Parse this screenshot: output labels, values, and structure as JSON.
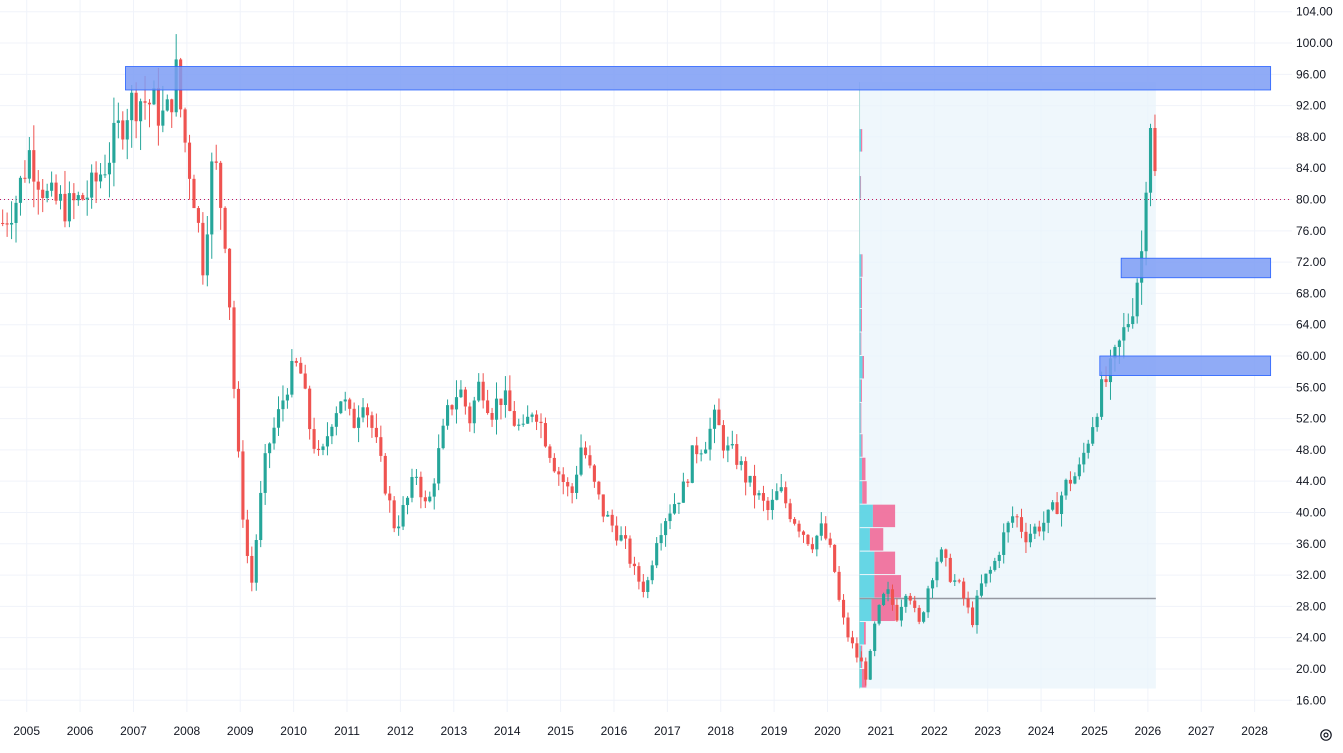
{
  "colors": {
    "up": "#26a69a",
    "down": "#ef5350",
    "zone_fill": "#7c9cf5",
    "zone_stroke": "#2962ff",
    "vp_up": "#4dd0e1",
    "vp_down": "#f06292",
    "vp_bg": "#e8f4fb",
    "price_line": "#c2185b",
    "poc": "#9598a1",
    "grid": "#f0f3fa",
    "text": "#131722"
  },
  "chart_data": {
    "type": "candlestick",
    "interval": "monthly",
    "title": "",
    "xlabel": "",
    "ylabel": "",
    "grid": true,
    "x_ticks": [
      "2005",
      "2006",
      "2007",
      "2008",
      "2009",
      "2010",
      "2011",
      "2012",
      "2013",
      "2014",
      "2015",
      "2016",
      "2017",
      "2018",
      "2019",
      "2020",
      "2021",
      "2022",
      "2023",
      "2024",
      "2025",
      "2026",
      "2027",
      "2028"
    ],
    "y_ticks": [
      "16.00",
      "20.00",
      "24.00",
      "28.00",
      "32.00",
      "36.00",
      "40.00",
      "44.00",
      "48.00",
      "52.00",
      "56.00",
      "60.00",
      "64.00",
      "68.00",
      "72.00",
      "76.00",
      "80.00",
      "84.00",
      "88.00",
      "92.00",
      "96.00",
      "100.00",
      "104.00"
    ],
    "ylim": [
      14.5,
      105.5
    ],
    "xlim": [
      2004.5,
      2028.7
    ],
    "last_price": 80.0,
    "anchors": [
      [
        2004.55,
        77
      ],
      [
        2004.8,
        80
      ],
      [
        2005.05,
        86
      ],
      [
        2005.4,
        80
      ],
      [
        2005.8,
        79
      ],
      [
        2006.2,
        81
      ],
      [
        2006.5,
        85
      ],
      [
        2006.9,
        92
      ],
      [
        2007.1,
        93
      ],
      [
        2007.4,
        92
      ],
      [
        2007.6,
        90
      ],
      [
        2007.8,
        96
      ],
      [
        2007.95,
        88
      ],
      [
        2008.15,
        80
      ],
      [
        2008.3,
        72
      ],
      [
        2008.5,
        86
      ],
      [
        2008.75,
        74
      ],
      [
        2008.85,
        60
      ],
      [
        2008.95,
        48
      ],
      [
        2009.05,
        40
      ],
      [
        2009.2,
        30
      ],
      [
        2009.35,
        40
      ],
      [
        2009.5,
        48
      ],
      [
        2009.7,
        52
      ],
      [
        2009.9,
        57
      ],
      [
        2010.1,
        59
      ],
      [
        2010.3,
        51
      ],
      [
        2010.5,
        46
      ],
      [
        2010.7,
        52
      ],
      [
        2010.9,
        55
      ],
      [
        2011.1,
        51
      ],
      [
        2011.3,
        55
      ],
      [
        2011.5,
        50
      ],
      [
        2011.7,
        44
      ],
      [
        2011.9,
        38
      ],
      [
        2012.1,
        41
      ],
      [
        2012.3,
        45
      ],
      [
        2012.5,
        40
      ],
      [
        2012.7,
        47
      ],
      [
        2012.9,
        53
      ],
      [
        2013.1,
        56
      ],
      [
        2013.3,
        52
      ],
      [
        2013.5,
        57
      ],
      [
        2013.7,
        53
      ],
      [
        2013.9,
        55
      ],
      [
        2014.1,
        52
      ],
      [
        2014.3,
        50
      ],
      [
        2014.5,
        54
      ],
      [
        2014.7,
        50
      ],
      [
        2014.9,
        46
      ],
      [
        2015.2,
        42
      ],
      [
        2015.4,
        49
      ],
      [
        2015.6,
        44
      ],
      [
        2015.8,
        40
      ],
      [
        2016.0,
        38
      ],
      [
        2016.2,
        36
      ],
      [
        2016.4,
        32
      ],
      [
        2016.6,
        30
      ],
      [
        2016.8,
        37
      ],
      [
        2017.0,
        40
      ],
      [
        2017.3,
        43
      ],
      [
        2017.5,
        48
      ],
      [
        2017.7,
        49
      ],
      [
        2017.9,
        52
      ],
      [
        2018.1,
        48
      ],
      [
        2018.3,
        47
      ],
      [
        2018.5,
        44
      ],
      [
        2018.7,
        42
      ],
      [
        2018.9,
        40
      ],
      [
        2019.1,
        43
      ],
      [
        2019.3,
        40
      ],
      [
        2019.5,
        38
      ],
      [
        2019.7,
        36
      ],
      [
        2019.9,
        38
      ],
      [
        2020.1,
        34
      ],
      [
        2020.25,
        27
      ],
      [
        2020.45,
        23
      ],
      [
        2020.6,
        21
      ],
      [
        2020.75,
        19
      ],
      [
        2020.9,
        26
      ],
      [
        2021.1,
        30
      ],
      [
        2021.3,
        27
      ],
      [
        2021.5,
        31
      ],
      [
        2021.7,
        25
      ],
      [
        2021.9,
        31
      ],
      [
        2022.1,
        35
      ],
      [
        2022.3,
        32
      ],
      [
        2022.5,
        30
      ],
      [
        2022.7,
        26
      ],
      [
        2022.9,
        31
      ],
      [
        2023.1,
        33
      ],
      [
        2023.3,
        37
      ],
      [
        2023.5,
        40
      ],
      [
        2023.7,
        37
      ],
      [
        2023.9,
        38
      ],
      [
        2024.1,
        39
      ],
      [
        2024.3,
        41
      ],
      [
        2024.5,
        44
      ],
      [
        2024.7,
        45
      ],
      [
        2024.9,
        50
      ],
      [
        2025.1,
        55
      ],
      [
        2025.3,
        58
      ],
      [
        2025.5,
        62
      ],
      [
        2025.7,
        66
      ],
      [
        2025.8,
        70
      ],
      [
        2025.9,
        74
      ],
      [
        2026.0,
        88
      ],
      [
        2026.08,
        92
      ],
      [
        2026.15,
        80
      ]
    ],
    "zones": [
      {
        "x0": 2006.85,
        "x1": 2028.3,
        "y0": 94.0,
        "y1": 97.0
      },
      {
        "x0": 2025.5,
        "x1": 2028.3,
        "y0": 70.0,
        "y1": 72.5
      },
      {
        "x0": 2025.1,
        "x1": 2028.3,
        "y0": 57.5,
        "y1": 60.0
      }
    ],
    "volume_profile": {
      "x_start": 2020.6,
      "x_end": 2026.15,
      "y_top": 95.0,
      "y_bottom": 17.5,
      "poc_price": 29.0,
      "bins": [
        {
          "y0": 86,
          "y1": 89,
          "up": 0.005,
          "down": 0.004
        },
        {
          "y0": 80,
          "y1": 83,
          "up": 0.003,
          "down": 0.002
        },
        {
          "y0": 70,
          "y1": 73,
          "up": 0.006,
          "down": 0.004
        },
        {
          "y0": 66,
          "y1": 70,
          "up": 0.005,
          "down": 0.003
        },
        {
          "y0": 63,
          "y1": 66,
          "up": 0.005,
          "down": 0.003
        },
        {
          "y0": 60,
          "y1": 63,
          "up": 0.004,
          "down": 0.002
        },
        {
          "y0": 57,
          "y1": 60,
          "up": 0.01,
          "down": 0.005
        },
        {
          "y0": 54,
          "y1": 57,
          "up": 0.005,
          "down": 0.003
        },
        {
          "y0": 50,
          "y1": 54,
          "up": 0.004,
          "down": 0.002
        },
        {
          "y0": 47,
          "y1": 50,
          "up": 0.006,
          "down": 0.004
        },
        {
          "y0": 44,
          "y1": 47,
          "up": 0.008,
          "down": 0.012
        },
        {
          "y0": 41,
          "y1": 44,
          "up": 0.009,
          "down": 0.015
        },
        {
          "y0": 38,
          "y1": 41,
          "up": 0.045,
          "down": 0.075
        },
        {
          "y0": 35,
          "y1": 38,
          "up": 0.035,
          "down": 0.045
        },
        {
          "y0": 32,
          "y1": 35,
          "up": 0.05,
          "down": 0.07
        },
        {
          "y0": 29,
          "y1": 32,
          "up": 0.05,
          "down": 0.09
        },
        {
          "y0": 26,
          "y1": 29,
          "up": 0.04,
          "down": 0.08
        },
        {
          "y0": 23,
          "y1": 26,
          "up": 0.015,
          "down": 0.006
        },
        {
          "y0": 20,
          "y1": 23,
          "up": 0.005,
          "down": 0.004
        },
        {
          "y0": 17.5,
          "y1": 20,
          "up": 0.008,
          "down": 0.015
        }
      ]
    }
  },
  "icons": {
    "settings": "gear-icon"
  }
}
